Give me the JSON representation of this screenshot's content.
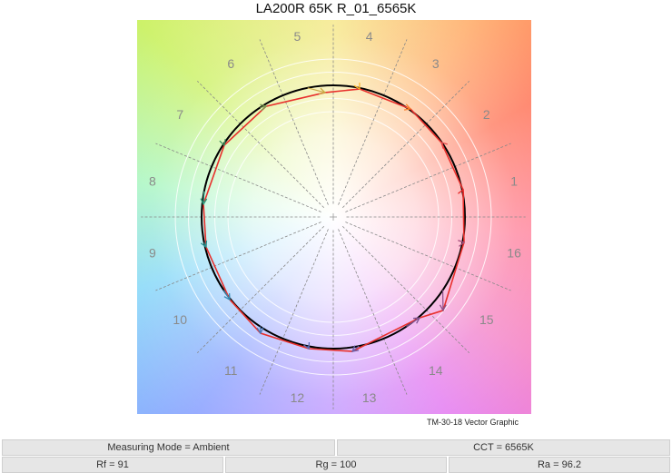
{
  "title": "LA200R 65K R_01_6565K",
  "caption": "TM-30-18 Vector Graphic",
  "info": {
    "measuring_mode": "Measuring Mode = Ambient",
    "cct": "CCT = 6565K",
    "rf": "Rf = 91",
    "rg": "Rg = 100",
    "ra": "Ra = 96.2"
  },
  "chart_data": {
    "type": "polar-vector",
    "title": "LA200R 65K R_01_6565K",
    "hue_bins": [
      "1",
      "2",
      "3",
      "4",
      "5",
      "6",
      "7",
      "8",
      "9",
      "10",
      "11",
      "12",
      "13",
      "14",
      "15",
      "16"
    ],
    "reference_radius": 1.0,
    "rings": [
      0.8,
      0.9,
      1.1,
      1.2
    ],
    "test_points_normalized": [
      [
        0.986,
        0.207
      ],
      [
        0.821,
        0.566
      ],
      [
        0.586,
        0.821
      ],
      [
        0.2,
        0.972
      ],
      [
        -0.062,
        0.945
      ],
      [
        -0.51,
        0.841
      ],
      [
        -0.828,
        0.545
      ],
      [
        -0.986,
        0.097
      ],
      [
        -0.966,
        -0.228
      ],
      [
        -0.786,
        -0.628
      ],
      [
        -0.552,
        -0.883
      ],
      [
        -0.186,
        -1.0
      ],
      [
        0.145,
        -1.021
      ],
      [
        0.655,
        -0.766
      ],
      [
        0.834,
        -0.71
      ],
      [
        0.993,
        -0.193
      ]
    ],
    "bin_colors": [
      "#e62828",
      "#e74b4b",
      "#fb812e",
      "#ffb529",
      "#cba946",
      "#7e9a55",
      "#3a8e5e",
      "#2e9a7d",
      "#268f8e",
      "#338ab4",
      "#4676b8",
      "#5a6bb5",
      "#6c5fa9",
      "#7b5393",
      "#8c4e88",
      "#a44e7e"
    ],
    "reference_color": "#000000",
    "test_color": "#e8302c"
  }
}
